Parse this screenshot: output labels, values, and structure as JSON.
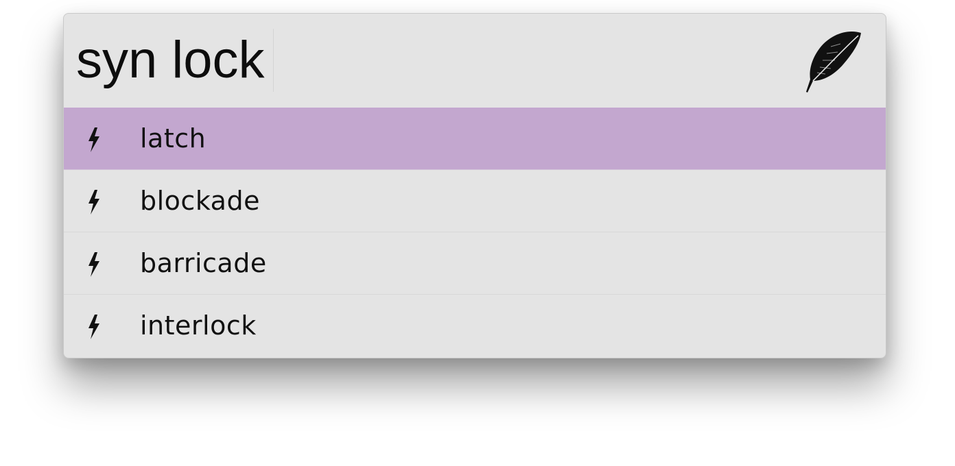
{
  "search": {
    "query": "syn lock"
  },
  "app_icon": "feather-icon",
  "colors": {
    "window_bg": "#e4e4e4",
    "selected_row": "#c3a7cf",
    "text": "#111111"
  },
  "results": [
    {
      "label": "latch",
      "icon": "bolt-icon",
      "selected": true
    },
    {
      "label": "blockade",
      "icon": "bolt-icon",
      "selected": false
    },
    {
      "label": "barricade",
      "icon": "bolt-icon",
      "selected": false
    },
    {
      "label": "interlock",
      "icon": "bolt-icon",
      "selected": false
    }
  ]
}
